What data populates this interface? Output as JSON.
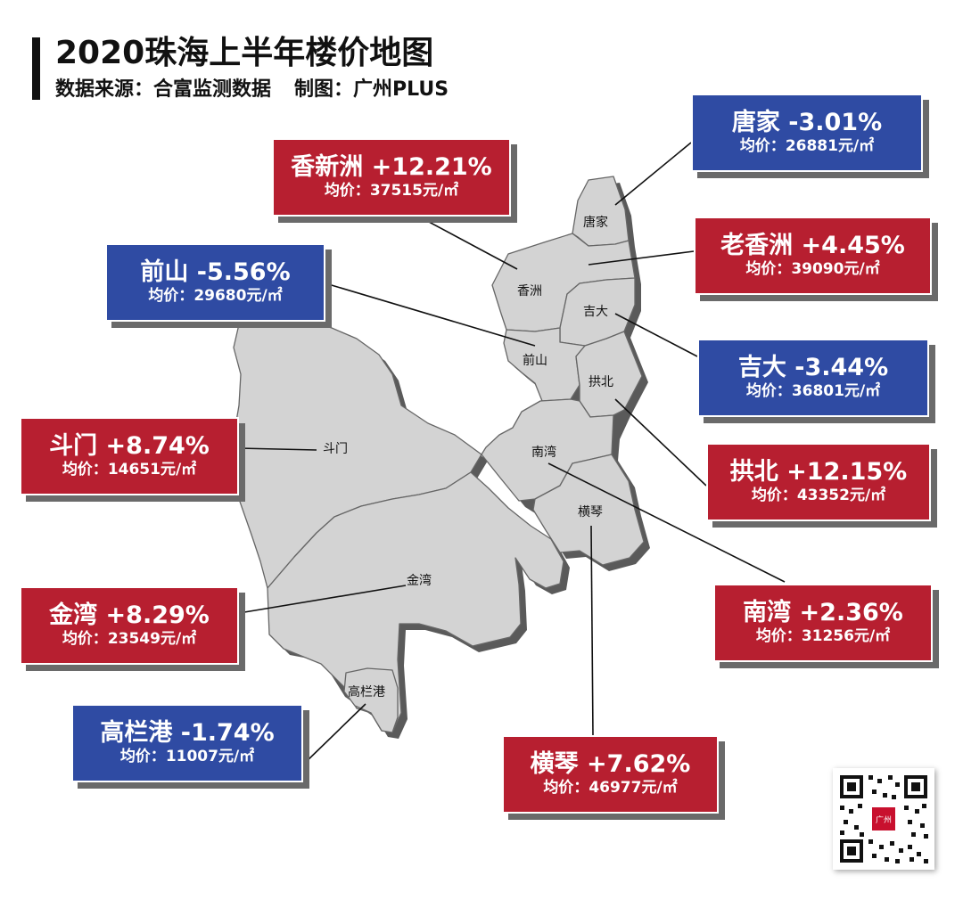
{
  "title": "2020珠海上半年楼价地图",
  "subtitle": {
    "source": "数据来源：合富监测数据",
    "credit": "制图：广州PLUS"
  },
  "colors": {
    "increase": "#b71f30",
    "decrease": "#2f4ba3",
    "region": "#d3d3d3"
  },
  "price_label": "均价：",
  "price_unit": "元/㎡",
  "districts": [
    {
      "name": "唐家",
      "change": "-3.01%",
      "price": "26881",
      "trend": "down"
    },
    {
      "name": "香新洲",
      "change": "+12.21%",
      "price": "37515",
      "trend": "up"
    },
    {
      "name": "老香洲",
      "change": "+4.45%",
      "price": "39090",
      "trend": "up"
    },
    {
      "name": "前山",
      "change": "-5.56%",
      "price": "29680",
      "trend": "down"
    },
    {
      "name": "吉大",
      "change": "-3.44%",
      "price": "36801",
      "trend": "down"
    },
    {
      "name": "斗门",
      "change": "+8.74%",
      "price": "14651",
      "trend": "up"
    },
    {
      "name": "拱北",
      "change": "+12.15%",
      "price": "43352",
      "trend": "up"
    },
    {
      "name": "金湾",
      "change": "+8.29%",
      "price": "23549",
      "trend": "up"
    },
    {
      "name": "南湾",
      "change": "+2.36%",
      "price": "31256",
      "trend": "up"
    },
    {
      "name": "高栏港",
      "change": "-1.74%",
      "price": "11007",
      "trend": "down"
    },
    {
      "name": "横琴",
      "change": "+7.62%",
      "price": "46977",
      "trend": "up"
    }
  ],
  "map_labels": {
    "tangjia": "唐家",
    "xiangzhou": "香洲",
    "jida": "吉大",
    "qianshan": "前山",
    "gongbei": "拱北",
    "doumen": "斗门",
    "nanwan": "南湾",
    "hengqin": "横琴",
    "jinwan": "金湾",
    "gaolangang": "高栏港"
  },
  "qr_code": {
    "icon": "qr-code-icon",
    "badge": "广州"
  }
}
